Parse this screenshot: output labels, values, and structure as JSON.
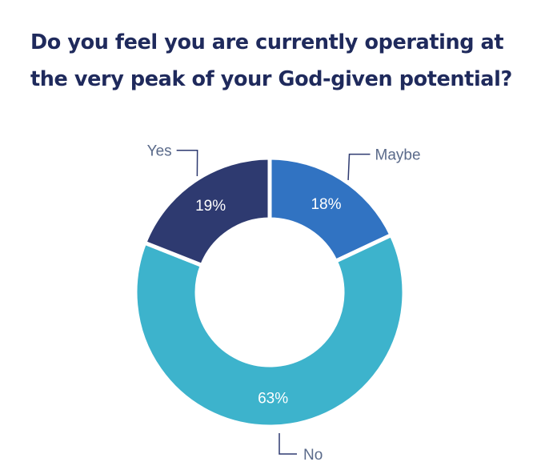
{
  "chart_data": {
    "type": "pie",
    "title": "Do you feel you are currently operating at the very peak of your God-given potential?",
    "donut": true,
    "slices": [
      {
        "label": "Maybe",
        "value": 18,
        "value_label": "18%",
        "color": "#3173c2"
      },
      {
        "label": "No",
        "value": 63,
        "value_label": "63%",
        "color": "#3db3cc"
      },
      {
        "label": "Yes",
        "value": 19,
        "value_label": "19%",
        "color": "#2e3a70"
      }
    ],
    "label_color": "#5a6a8a",
    "leader_color": "#2e3a70",
    "value_label_color": "#ffffff"
  }
}
